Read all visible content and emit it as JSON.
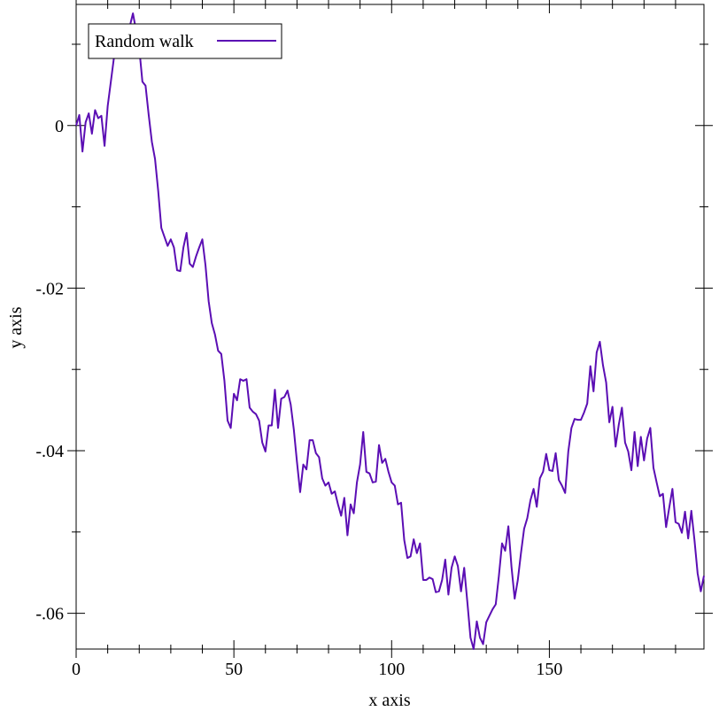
{
  "chart_data": {
    "type": "line",
    "xlabel": "x axis",
    "ylabel": "y axis",
    "x": [
      0,
      1,
      2,
      3,
      4,
      5,
      6,
      7,
      8,
      9,
      10,
      11,
      12,
      13,
      14,
      15,
      16,
      17,
      18,
      19,
      20,
      21,
      22,
      23,
      24,
      25,
      26,
      27,
      28,
      29,
      30,
      31,
      32,
      33,
      34,
      35,
      36,
      37,
      38,
      39,
      40,
      41,
      42,
      43,
      44,
      45,
      46,
      47,
      48,
      49,
      50,
      51,
      52,
      53,
      54,
      55,
      56,
      57,
      58,
      59,
      60,
      61,
      62,
      63,
      64,
      65,
      66,
      67,
      68,
      69,
      70,
      71,
      72,
      73,
      74,
      75,
      76,
      77,
      78,
      79,
      80,
      81,
      82,
      83,
      84,
      85,
      86,
      87,
      88,
      89,
      90,
      91,
      92,
      93,
      94,
      95,
      96,
      97,
      98,
      99,
      100,
      101,
      102,
      103,
      104,
      105,
      106,
      107,
      108,
      109,
      110,
      111,
      112,
      113,
      114,
      115,
      116,
      117,
      118,
      119,
      120,
      121,
      122,
      123,
      124,
      125,
      126,
      127,
      128,
      129,
      130,
      131,
      132,
      133,
      134,
      135,
      136,
      137,
      138,
      139,
      140,
      141,
      142,
      143,
      144,
      145,
      146,
      147,
      148,
      149,
      150,
      151,
      152,
      153,
      154,
      155,
      156,
      157,
      158,
      159,
      160,
      161,
      162,
      163,
      164,
      165,
      166,
      167,
      168,
      169,
      170,
      171,
      172,
      173,
      174,
      175,
      176,
      177,
      178,
      179,
      180,
      181,
      182,
      183,
      184,
      185,
      186,
      187,
      188,
      189,
      190,
      191,
      192,
      193,
      194,
      195,
      196,
      197,
      198,
      199
    ],
    "series": [
      {
        "name": "Random walk",
        "color": "#5b0eb4",
        "values": [
          0,
          0.0013,
          -0.0032,
          0.0004,
          0.0015,
          -0.001,
          0.0019,
          0.0009,
          0.0012,
          -0.0025,
          0.0024,
          0.0054,
          0.0084,
          0.0087,
          0.0093,
          0.0106,
          0.0111,
          0.0122,
          0.0138,
          0.0117,
          0.0095,
          0.0054,
          0.0049,
          0.0013,
          -0.002,
          -0.0041,
          -0.008,
          -0.0126,
          -0.0137,
          -0.0148,
          -0.014,
          -0.015,
          -0.0178,
          -0.0179,
          -0.015,
          -0.0132,
          -0.017,
          -0.0174,
          -0.0161,
          -0.015,
          -0.014,
          -0.0172,
          -0.0216,
          -0.0243,
          -0.0257,
          -0.0277,
          -0.0281,
          -0.0314,
          -0.0363,
          -0.0372,
          -0.033,
          -0.0338,
          -0.0312,
          -0.0314,
          -0.0312,
          -0.0347,
          -0.0352,
          -0.0355,
          -0.0363,
          -0.039,
          -0.0401,
          -0.0369,
          -0.0369,
          -0.0325,
          -0.0372,
          -0.0336,
          -0.0334,
          -0.0326,
          -0.0343,
          -0.0374,
          -0.0414,
          -0.0451,
          -0.0417,
          -0.0423,
          -0.0387,
          -0.0387,
          -0.0403,
          -0.0408,
          -0.0434,
          -0.0443,
          -0.0439,
          -0.0453,
          -0.045,
          -0.0466,
          -0.048,
          -0.0458,
          -0.0504,
          -0.0466,
          -0.0477,
          -0.0439,
          -0.0417,
          -0.0377,
          -0.0426,
          -0.0428,
          -0.0439,
          -0.0438,
          -0.0393,
          -0.0415,
          -0.041,
          -0.0426,
          -0.0439,
          -0.0443,
          -0.0466,
          -0.0464,
          -0.051,
          -0.0532,
          -0.053,
          -0.0509,
          -0.0526,
          -0.0514,
          -0.0559,
          -0.0559,
          -0.0556,
          -0.0558,
          -0.0574,
          -0.0573,
          -0.0559,
          -0.0534,
          -0.0577,
          -0.0544,
          -0.053,
          -0.0542,
          -0.0573,
          -0.0544,
          -0.0586,
          -0.063,
          -0.0644,
          -0.061,
          -0.063,
          -0.0638,
          -0.0611,
          -0.0603,
          -0.0595,
          -0.0589,
          -0.0554,
          -0.0514,
          -0.0523,
          -0.0493,
          -0.0543,
          -0.0582,
          -0.0559,
          -0.0526,
          -0.0496,
          -0.0483,
          -0.0461,
          -0.0447,
          -0.0469,
          -0.0434,
          -0.0426,
          -0.0404,
          -0.0424,
          -0.0425,
          -0.0403,
          -0.0436,
          -0.0443,
          -0.0452,
          -0.0401,
          -0.0372,
          -0.0361,
          -0.0362,
          -0.0362,
          -0.0353,
          -0.0342,
          -0.0296,
          -0.0327,
          -0.0279,
          -0.0266,
          -0.0295,
          -0.0316,
          -0.0365,
          -0.0346,
          -0.0395,
          -0.0368,
          -0.0347,
          -0.039,
          -0.0401,
          -0.0424,
          -0.0377,
          -0.0419,
          -0.0383,
          -0.0412,
          -0.0385,
          -0.0372,
          -0.0421,
          -0.0439,
          -0.0456,
          -0.0453,
          -0.0494,
          -0.047,
          -0.0447,
          -0.0488,
          -0.049,
          -0.0501,
          -0.0475,
          -0.0508,
          -0.0474,
          -0.051,
          -0.0551,
          -0.0573,
          -0.0554
        ]
      }
    ],
    "xlim": [
      0,
      199
    ],
    "ylim": [
      -0.0644,
      0.0149
    ],
    "xticks": [
      0,
      50,
      100,
      150
    ],
    "yticks": [
      0,
      {
        "value": -0.02,
        "label": "-.02"
      },
      {
        "value": -0.04,
        "label": "-.04"
      },
      {
        "value": -0.06,
        "label": "-.06"
      }
    ],
    "xticks_minor": [
      10,
      20,
      30,
      40,
      60,
      70,
      80,
      90,
      110,
      120,
      130,
      140,
      160,
      170,
      180,
      190
    ],
    "yticks_minor": [
      0.01,
      -0.01,
      -0.03,
      -0.05
    ],
    "legend": "top-left"
  }
}
